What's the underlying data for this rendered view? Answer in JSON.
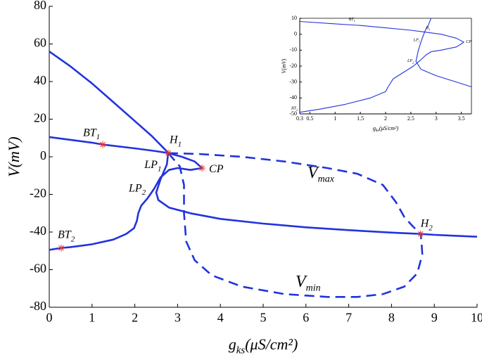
{
  "chart_data": [
    {
      "type": "line",
      "xlabel": {
        "text": "g",
        "sub": "ks",
        "rest": "(μS/cm²)"
      },
      "ylabel": "V(mV)",
      "xlim": [
        0,
        10
      ],
      "ylim": [
        -80,
        80
      ],
      "xticks": [
        0,
        1,
        2,
        3,
        4,
        5,
        6,
        7,
        8,
        9,
        10
      ],
      "yticks": [
        -80,
        -60,
        -40,
        -20,
        0,
        20,
        40,
        60,
        80
      ],
      "series": [
        {
          "style": "solid",
          "color": "#2233dd",
          "x": [
            0,
            0.5,
            1,
            1.5,
            2,
            2.4,
            2.7,
            2.78,
            2.75,
            2.6,
            2.5,
            2.55,
            2.8,
            3.3,
            4,
            5,
            6,
            7,
            8,
            8.68,
            9,
            10
          ],
          "values": [
            56,
            48,
            39,
            29,
            19,
            11,
            4,
            2,
            -4,
            -12,
            -19,
            -23,
            -27,
            -30,
            -33,
            -35.5,
            -37.5,
            -39,
            -40.3,
            -41,
            -41.5,
            -42.5
          ]
        },
        {
          "style": "solid",
          "color": "#2233dd",
          "x": [
            0,
            0.5,
            1,
            1.25,
            2,
            2.5,
            2.78,
            3.1,
            3.4,
            3.57,
            3.3,
            3.0,
            2.8,
            2.6,
            2.45,
            2.3,
            2.15,
            2.08,
            2.05,
            1.98,
            1.8,
            1.5,
            1,
            0.5,
            0.28,
            0
          ],
          "values": [
            10.5,
            9,
            7.5,
            6.5,
            4.5,
            3,
            2,
            0,
            -2.5,
            -6,
            -7,
            -6,
            -7,
            -11,
            -17,
            -22,
            -26,
            -30,
            -34,
            -38,
            -41,
            -44,
            -46.5,
            -48,
            -48.5,
            -49.5
          ]
        },
        {
          "style": "dashed",
          "color": "#2233dd",
          "x": [
            2.78,
            3.5,
            4.5,
            5.5,
            6.5,
            7.2,
            7.8,
            8.1,
            8.3,
            8.5,
            8.68
          ],
          "values": [
            2,
            1.5,
            0,
            -2.5,
            -6,
            -9,
            -15,
            -24,
            -32,
            -37,
            -41
          ]
        },
        {
          "style": "dashed",
          "color": "#2233dd",
          "x": [
            2.78,
            3.05,
            3.15,
            3.15,
            3.2,
            3.4,
            3.8,
            4.5,
            5.5,
            6.5,
            7.2,
            7.8,
            8.3,
            8.6,
            8.72,
            8.7,
            8.68
          ],
          "values": [
            2,
            -5,
            -15,
            -30,
            -45,
            -55,
            -63,
            -69,
            -73,
            -74.5,
            -74.5,
            -73,
            -69,
            -62,
            -52,
            -45,
            -41
          ]
        }
      ],
      "points": [
        {
          "text": "BT",
          "sub": "1",
          "x": 1.25,
          "y": 6.5,
          "marker": true
        },
        {
          "text": "H",
          "sub": "1",
          "x": 2.78,
          "y": 2,
          "marker": true
        },
        {
          "text": "LP",
          "sub": "1",
          "x": 2.85,
          "y": -3,
          "marker": false
        },
        {
          "text": "CP",
          "x": 3.57,
          "y": -6,
          "marker": true
        },
        {
          "text": "LP",
          "sub": "2",
          "x": 2.45,
          "y": -17,
          "marker": false
        },
        {
          "text": "BT",
          "sub": "2",
          "x": 0.28,
          "y": -48.5,
          "marker": true
        },
        {
          "text": "H",
          "sub": "2",
          "x": 8.68,
          "y": -41,
          "marker": true
        }
      ],
      "annotations": [
        {
          "text": "V",
          "sub": "max"
        },
        {
          "text": "V",
          "sub": "min"
        }
      ]
    },
    {
      "type": "line",
      "xlabel": {
        "text": "g",
        "sub": "ks",
        "rest": "(μS/cm²)"
      },
      "ylabel": "V(mV)",
      "xlim": [
        0.3,
        3.7
      ],
      "ylim": [
        -50,
        10
      ],
      "xticks": [
        0.3,
        0.5,
        1,
        1.5,
        2,
        2.5,
        3,
        3.5
      ],
      "yticks": [
        -50,
        -40,
        -30,
        -20,
        -10,
        0,
        10
      ],
      "series": [
        {
          "style": "solid",
          "color": "#2233dd",
          "x": [
            0.3,
            1,
            1.5,
            2,
            2.5,
            2.75,
            3.1,
            3.4,
            3.55,
            3.4,
            3.1,
            2.9,
            2.8,
            2.7,
            2.55,
            2.35,
            2.15,
            2.05,
            2.0,
            1.7,
            1.2,
            0.7,
            0.3
          ],
          "values": [
            8,
            6.5,
            5.5,
            4,
            2.5,
            1.5,
            0,
            -2.5,
            -5,
            -8,
            -10,
            -11,
            -13,
            -16,
            -20,
            -24,
            -28,
            -33,
            -36,
            -40,
            -44,
            -47,
            -49
          ]
        },
        {
          "style": "solid",
          "color": "#2233dd",
          "x": [
            2.9,
            2.85,
            2.78,
            2.72,
            2.65,
            2.6,
            2.7,
            3.0,
            3.3,
            3.7
          ],
          "values": [
            10,
            6,
            2,
            -3,
            -10,
            -17,
            -22,
            -26,
            -29,
            -33
          ]
        }
      ],
      "points": [
        {
          "text": "BT",
          "sub": "1",
          "x": 1.27,
          "y": 7,
          "marker": false
        },
        {
          "text": "H",
          "sub": "1",
          "x": 2.75,
          "y": 1.5,
          "marker": false
        },
        {
          "text": "LP",
          "sub": "1",
          "x": 2.72,
          "y": -3,
          "marker": false
        },
        {
          "text": "CP",
          "x": 3.55,
          "y": -5,
          "marker": false
        },
        {
          "text": "LP",
          "sub": "2",
          "x": 2.6,
          "y": -17,
          "marker": false
        },
        {
          "text": "BT",
          "sub": "2",
          "x": 0.3,
          "y": -48,
          "marker": false
        }
      ]
    }
  ]
}
